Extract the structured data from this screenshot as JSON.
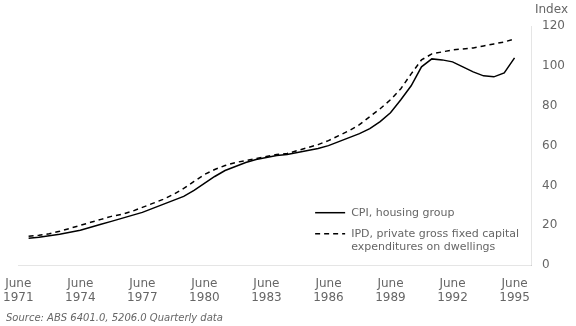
{
  "chart_data": {
    "type": "line",
    "ylabel": "Index",
    "annotations": [
      "Source: ABS 6401.0, 5206.0 Quarterly data"
    ],
    "x": [
      1971.5,
      1972,
      1972.5,
      1973,
      1973.5,
      1974,
      1974.5,
      1975,
      1975.5,
      1976,
      1976.5,
      1977,
      1977.5,
      1978,
      1978.5,
      1979,
      1979.5,
      1980,
      1980.5,
      1981,
      1981.5,
      1982,
      1982.5,
      1983,
      1983.5,
      1984,
      1984.5,
      1985,
      1985.5,
      1986,
      1986.5,
      1987,
      1987.5,
      1988,
      1988.5,
      1989,
      1989.5,
      1990,
      1990.5,
      1991,
      1991.5,
      1992,
      1992.5,
      1993,
      1993.5,
      1994,
      1994.5,
      1995
    ],
    "series": [
      {
        "name": "CPI, housing group",
        "color": "#000000",
        "line_style": "solid",
        "values": [
          13.5,
          14.0,
          14.8,
          15.5,
          16.5,
          17.5,
          19.0,
          20.5,
          22.0,
          23.5,
          25.0,
          26.5,
          28.5,
          30.5,
          32.5,
          34.5,
          37.5,
          41.0,
          44.5,
          47.5,
          49.5,
          51.5,
          53.0,
          54.0,
          55.0,
          55.5,
          56.5,
          57.5,
          58.5,
          60.0,
          62.0,
          64.0,
          66.0,
          68.5,
          72.0,
          76.5,
          83.0,
          90.0,
          99.5,
          103.5,
          103.0,
          102.0,
          99.5,
          97.0,
          95.0,
          94.5,
          96.5,
          104.0
        ]
      },
      {
        "name": "IPD, private gross fixed capital\nexpenditures on dwellings",
        "color": "#000000",
        "line_style": "dashed",
        "values": [
          14.5,
          15.0,
          15.8,
          17.0,
          18.5,
          20.0,
          21.5,
          23.0,
          24.5,
          25.5,
          27.0,
          29.0,
          31.0,
          33.0,
          35.5,
          38.5,
          42.0,
          45.5,
          48.0,
          50.0,
          51.5,
          52.5,
          53.5,
          54.5,
          55.5,
          56.0,
          57.5,
          59.0,
          60.5,
          62.5,
          65.0,
          67.5,
          70.5,
          74.5,
          78.5,
          83.0,
          88.5,
          96.0,
          103.0,
          106.0,
          107.0,
          108.0,
          108.5,
          109.0,
          110.0,
          111.0,
          112.0,
          113.5
        ]
      }
    ],
    "xlim": [
      1971,
      1995.8
    ],
    "xticks": [
      {
        "value": 1971,
        "label": "June\n1971"
      },
      {
        "value": 1974,
        "label": "June\n1974"
      },
      {
        "value": 1977,
        "label": "June\n1977"
      },
      {
        "value": 1980,
        "label": "June\n1980"
      },
      {
        "value": 1983,
        "label": "June\n1983"
      },
      {
        "value": 1986,
        "label": "June\n1986"
      },
      {
        "value": 1989,
        "label": "June\n1989"
      },
      {
        "value": 1992,
        "label": "June\n1992"
      },
      {
        "value": 1995,
        "label": "June\n1995"
      }
    ],
    "ylim": [
      0,
      120
    ],
    "yticks": [
      0,
      20,
      40,
      60,
      80,
      100,
      120
    ],
    "grid": false,
    "legend": "lower right"
  }
}
